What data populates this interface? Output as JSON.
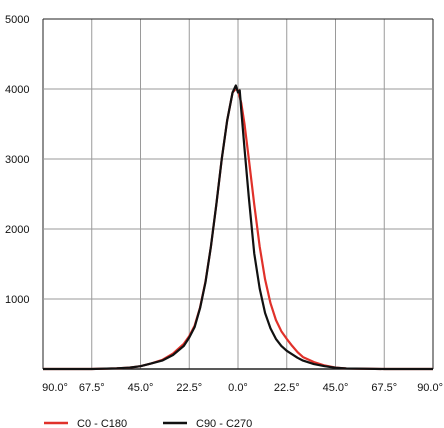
{
  "chart_data": {
    "type": "line",
    "title": "",
    "xlabel": "",
    "ylabel": "",
    "x_tick_labels": [
      "90.0°",
      "67.5°",
      "45.0°",
      "22.5°",
      "0.0°",
      "22.5°",
      "45.0°",
      "67.5°",
      "90.0°"
    ],
    "y_tick_labels": [
      "1000",
      "2000",
      "3000",
      "4000",
      "5000"
    ],
    "xlim": [
      -90,
      90
    ],
    "ylim": [
      0,
      5000
    ],
    "grid": true,
    "legend_position": "bottom",
    "series": [
      {
        "name": "C0 - C180",
        "color": "#e0312a",
        "points": [
          [
            -90,
            0
          ],
          [
            -67.5,
            0
          ],
          [
            -56,
            10
          ],
          [
            -50,
            20
          ],
          [
            -45,
            40
          ],
          [
            -40,
            80
          ],
          [
            -35,
            130
          ],
          [
            -30,
            220
          ],
          [
            -25,
            360
          ],
          [
            -22.5,
            470
          ],
          [
            -20,
            620
          ],
          [
            -17.5,
            880
          ],
          [
            -15,
            1250
          ],
          [
            -12.5,
            1750
          ],
          [
            -10,
            2350
          ],
          [
            -7.5,
            3000
          ],
          [
            -5,
            3550
          ],
          [
            -2.5,
            3950
          ],
          [
            -1,
            4000
          ],
          [
            0,
            3980
          ],
          [
            1.5,
            3800
          ],
          [
            3,
            3500
          ],
          [
            5,
            3000
          ],
          [
            7.5,
            2350
          ],
          [
            10,
            1750
          ],
          [
            12.5,
            1280
          ],
          [
            15,
            940
          ],
          [
            17.5,
            700
          ],
          [
            20,
            540
          ],
          [
            22.5,
            430
          ],
          [
            25,
            330
          ],
          [
            27.5,
            240
          ],
          [
            30,
            170
          ],
          [
            35,
            100
          ],
          [
            40,
            50
          ],
          [
            45,
            20
          ],
          [
            50,
            8
          ],
          [
            67.5,
            0
          ],
          [
            90,
            0
          ]
        ]
      },
      {
        "name": "C90 - C270",
        "color": "#111111",
        "points": [
          [
            -90,
            0
          ],
          [
            -67.5,
            0
          ],
          [
            -56,
            10
          ],
          [
            -50,
            20
          ],
          [
            -45,
            40
          ],
          [
            -40,
            80
          ],
          [
            -35,
            120
          ],
          [
            -30,
            200
          ],
          [
            -25,
            330
          ],
          [
            -22.5,
            450
          ],
          [
            -20,
            600
          ],
          [
            -17.5,
            870
          ],
          [
            -15,
            1240
          ],
          [
            -12.5,
            1750
          ],
          [
            -10,
            2350
          ],
          [
            -7.5,
            3000
          ],
          [
            -5,
            3550
          ],
          [
            -2.5,
            3950
          ],
          [
            -1,
            4050
          ],
          [
            0,
            3950
          ],
          [
            0.8,
            3980
          ],
          [
            1.5,
            3700
          ],
          [
            3,
            3150
          ],
          [
            5,
            2450
          ],
          [
            7.5,
            1650
          ],
          [
            10,
            1150
          ],
          [
            12.5,
            800
          ],
          [
            15,
            580
          ],
          [
            17.5,
            430
          ],
          [
            20,
            330
          ],
          [
            22.5,
            260
          ],
          [
            25,
            210
          ],
          [
            27.5,
            160
          ],
          [
            30,
            120
          ],
          [
            35,
            70
          ],
          [
            40,
            40
          ],
          [
            45,
            18
          ],
          [
            50,
            8
          ],
          [
            67.5,
            0
          ],
          [
            90,
            0
          ]
        ]
      }
    ]
  }
}
